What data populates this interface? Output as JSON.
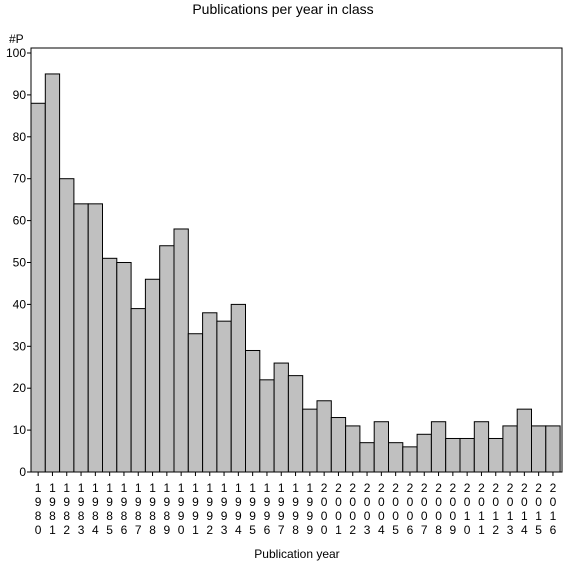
{
  "chart_data": {
    "type": "bar",
    "title": "Publications per year in class",
    "xlabel": "Publication year",
    "ylabel": "#P",
    "ylim": [
      0,
      100
    ],
    "yticks": [
      0,
      10,
      20,
      30,
      40,
      50,
      60,
      70,
      80,
      90,
      100
    ],
    "categories": [
      "1980",
      "1981",
      "1982",
      "1983",
      "1984",
      "1985",
      "1986",
      "1987",
      "1988",
      "1989",
      "1990",
      "1991",
      "1992",
      "1993",
      "1994",
      "1995",
      "1996",
      "1997",
      "1998",
      "1999",
      "2000",
      "2001",
      "2002",
      "2003",
      "2004",
      "2005",
      "2006",
      "2007",
      "2008",
      "2009",
      "2010",
      "2011",
      "2012",
      "2013",
      "2014",
      "2015",
      "2016"
    ],
    "values": [
      88,
      95,
      70,
      64,
      64,
      51,
      50,
      39,
      46,
      54,
      58,
      33,
      38,
      36,
      40,
      29,
      22,
      26,
      23,
      15,
      17,
      13,
      11,
      7,
      12,
      7,
      6,
      9,
      12,
      8,
      8,
      12,
      8,
      11,
      15,
      11,
      11
    ],
    "bar_color": "#c0c0c0",
    "bar_border": "#000000",
    "grid": false,
    "legend": "none"
  }
}
